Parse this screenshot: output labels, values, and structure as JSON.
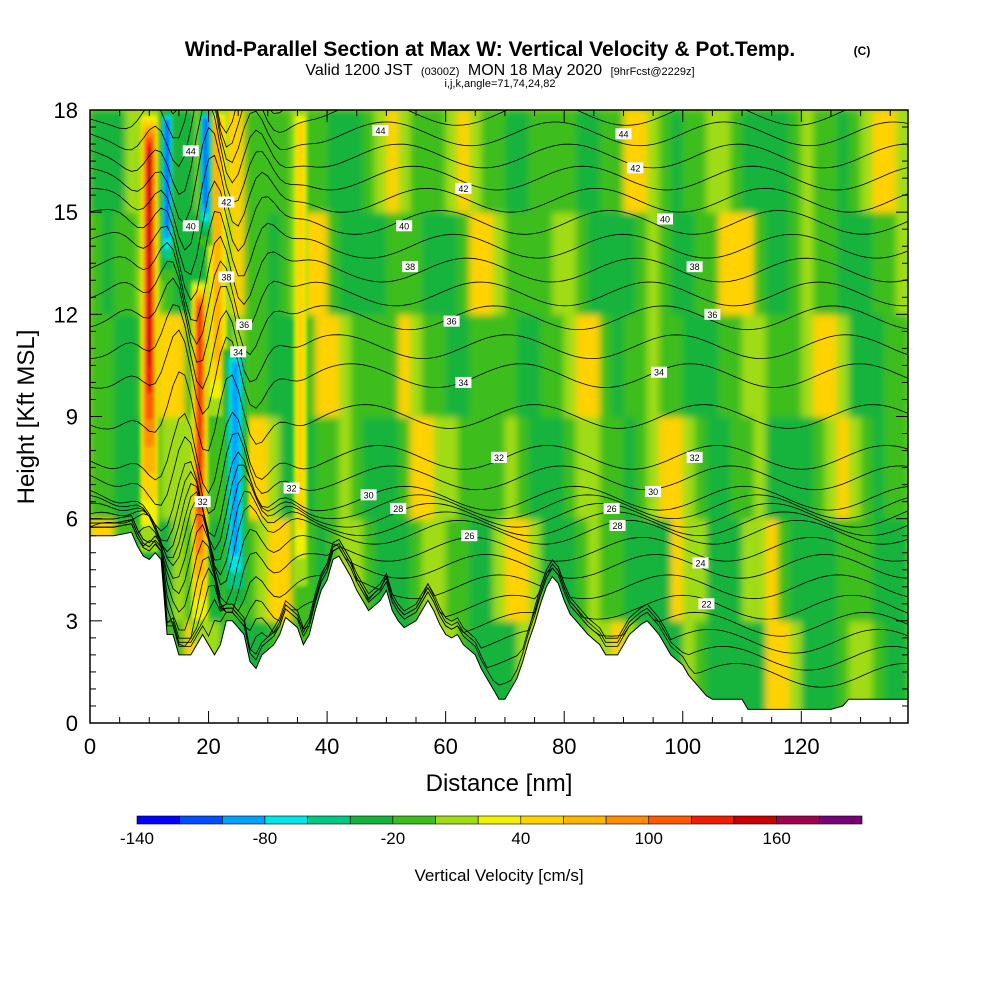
{
  "chart_data": {
    "type": "heatmap",
    "title": "Wind-Parallel Section at Max W: Vertical Velocity & Pot.Temp.",
    "title_mark": "(C)",
    "subtitle_valid": "Valid 1200 JST",
    "subtitle_utc": "(0300Z)",
    "subtitle_date": "MON 18 May 2020",
    "subtitle_fcst": "[9hrFcst@2229z]",
    "subtitle_indices": "i,j,k,angle=71,74,24,82",
    "xlabel": "Distance [nm]",
    "ylabel": "Height [Kft MSL]",
    "xlim": [
      0,
      138
    ],
    "ylim": [
      0,
      18
    ],
    "xticks": [
      0,
      20,
      40,
      60,
      80,
      100,
      120
    ],
    "yticks": [
      0,
      3,
      6,
      9,
      12,
      15,
      18
    ],
    "colorbar": {
      "label": "Vertical Velocity [cm/s]",
      "range": [
        -140,
        200
      ],
      "step": 20,
      "tick_values": [
        -140,
        -80,
        -20,
        40,
        100,
        160
      ],
      "tick_labels": [
        "-140",
        "-80",
        "-20",
        "40",
        "100",
        "160"
      ],
      "colors": [
        "#0000ff",
        "#0050ff",
        "#00a0ff",
        "#00e6e6",
        "#00c882",
        "#14b43c",
        "#3cbe1e",
        "#a0dc14",
        "#f0f000",
        "#ffd200",
        "#ffb400",
        "#ff8c00",
        "#ff5a00",
        "#f01e00",
        "#c80000",
        "#a00050",
        "#780078"
      ]
    },
    "terrain": [
      [
        0,
        5.5
      ],
      [
        4,
        5.5
      ],
      [
        7,
        5.6
      ],
      [
        8,
        5.2
      ],
      [
        9,
        4.9
      ],
      [
        10,
        4.8
      ],
      [
        11,
        5.0
      ],
      [
        12,
        4.8
      ],
      [
        13,
        2.6
      ],
      [
        14,
        2.6
      ],
      [
        15,
        2.0
      ],
      [
        17,
        2.0
      ],
      [
        18,
        2.3
      ],
      [
        19,
        2.6
      ],
      [
        20,
        2.3
      ],
      [
        21,
        2.0
      ],
      [
        22,
        2.3
      ],
      [
        23,
        3.0
      ],
      [
        24,
        3.0
      ],
      [
        26,
        2.6
      ],
      [
        27,
        1.8
      ],
      [
        28,
        1.6
      ],
      [
        29,
        2.0
      ],
      [
        31,
        2.3
      ],
      [
        32,
        2.6
      ],
      [
        33,
        3.1
      ],
      [
        35,
        2.8
      ],
      [
        36,
        2.3
      ],
      [
        37,
        2.6
      ],
      [
        38,
        3.3
      ],
      [
        39,
        3.9
      ],
      [
        40,
        4.2
      ],
      [
        41,
        4.8
      ],
      [
        42,
        4.9
      ],
      [
        44,
        4.3
      ],
      [
        45,
        3.9
      ],
      [
        46,
        3.6
      ],
      [
        47,
        3.3
      ],
      [
        49,
        3.6
      ],
      [
        50,
        3.9
      ],
      [
        51,
        3.3
      ],
      [
        52,
        3.0
      ],
      [
        53,
        2.8
      ],
      [
        55,
        3.0
      ],
      [
        56,
        3.3
      ],
      [
        57,
        3.6
      ],
      [
        58,
        3.3
      ],
      [
        59,
        2.9
      ],
      [
        60,
        2.6
      ],
      [
        61,
        2.5
      ],
      [
        62,
        2.6
      ],
      [
        63,
        2.3
      ],
      [
        65,
        2.0
      ],
      [
        66,
        1.6
      ],
      [
        67,
        1.3
      ],
      [
        68,
        1.0
      ],
      [
        69,
        0.7
      ],
      [
        70,
        0.7
      ],
      [
        71,
        1.0
      ],
      [
        72,
        1.3
      ],
      [
        73,
        1.8
      ],
      [
        74,
        2.4
      ],
      [
        75,
        2.9
      ],
      [
        76,
        3.5
      ],
      [
        77,
        4.0
      ],
      [
        78,
        4.3
      ],
      [
        79,
        4.1
      ],
      [
        80,
        3.6
      ],
      [
        81,
        3.2
      ],
      [
        82,
        3.0
      ],
      [
        83,
        2.8
      ],
      [
        84,
        2.6
      ],
      [
        86,
        2.3
      ],
      [
        87,
        2.0
      ],
      [
        89,
        2.0
      ],
      [
        90,
        2.3
      ],
      [
        91,
        2.6
      ],
      [
        93,
        2.9
      ],
      [
        94,
        3.0
      ],
      [
        95,
        2.8
      ],
      [
        96,
        2.6
      ],
      [
        97,
        2.3
      ],
      [
        98,
        2.0
      ],
      [
        100,
        1.7
      ],
      [
        101,
        1.4
      ],
      [
        103,
        1.0
      ],
      [
        104,
        0.8
      ],
      [
        105,
        0.7
      ],
      [
        110,
        0.7
      ],
      [
        111,
        0.4
      ],
      [
        114,
        0.4
      ],
      [
        120,
        0.4
      ],
      [
        125,
        0.4
      ],
      [
        127,
        0.5
      ],
      [
        128,
        0.7
      ],
      [
        132,
        0.7
      ],
      [
        138,
        0.7
      ]
    ],
    "isentropes": [
      {
        "value": 22,
        "label_x": 104,
        "label_y": 3.5
      },
      {
        "value": 24,
        "label_x": 103,
        "label_y": 4.7
      },
      {
        "value": 26,
        "label_x": 64,
        "label_y": 5.5
      },
      {
        "value": 28,
        "label_x": 52,
        "label_y": 6.3
      },
      {
        "value": 30,
        "label_x": 47,
        "label_y": 6.7
      },
      {
        "value": 32,
        "label_x": 34,
        "label_y": 7.0
      },
      {
        "value": 34,
        "label_x": 63,
        "label_y": 10.0
      },
      {
        "value": 36,
        "label_x": 61,
        "label_y": 11.8
      },
      {
        "value": 38,
        "label_x": 54,
        "label_y": 13.4
      },
      {
        "value": 40,
        "label_x": 53,
        "label_y": 14.6
      },
      {
        "value": 42,
        "label_x": 63,
        "label_y": 15.7
      },
      {
        "value": 44,
        "label_x": 49,
        "label_y": 17.4
      }
    ],
    "contour_labels": [
      {
        "text": "44",
        "x": 17,
        "y": 16.8
      },
      {
        "text": "42",
        "x": 23,
        "y": 15.3
      },
      {
        "text": "40",
        "x": 17,
        "y": 14.6
      },
      {
        "text": "38",
        "x": 23,
        "y": 13.1
      },
      {
        "text": "36",
        "x": 26,
        "y": 11.7
      },
      {
        "text": "34",
        "x": 25,
        "y": 10.9
      },
      {
        "text": "32",
        "x": 19,
        "y": 6.5
      },
      {
        "text": "32",
        "x": 34,
        "y": 6.9
      },
      {
        "text": "30",
        "x": 47,
        "y": 6.7
      },
      {
        "text": "28",
        "x": 52,
        "y": 6.3
      },
      {
        "text": "26",
        "x": 64,
        "y": 5.5
      },
      {
        "text": "44",
        "x": 49,
        "y": 17.4
      },
      {
        "text": "42",
        "x": 63,
        "y": 15.7
      },
      {
        "text": "40",
        "x": 53,
        "y": 14.6
      },
      {
        "text": "38",
        "x": 54,
        "y": 13.4
      },
      {
        "text": "36",
        "x": 61,
        "y": 11.8
      },
      {
        "text": "34",
        "x": 63,
        "y": 10.0
      },
      {
        "text": "32",
        "x": 69,
        "y": 7.8
      },
      {
        "text": "44",
        "x": 90,
        "y": 17.3
      },
      {
        "text": "42",
        "x": 92,
        "y": 16.3
      },
      {
        "text": "40",
        "x": 97,
        "y": 14.8
      },
      {
        "text": "38",
        "x": 102,
        "y": 13.4
      },
      {
        "text": "36",
        "x": 105,
        "y": 12.0
      },
      {
        "text": "34",
        "x": 96,
        "y": 10.3
      },
      {
        "text": "32",
        "x": 102,
        "y": 7.8
      },
      {
        "text": "30",
        "x": 95,
        "y": 6.8
      },
      {
        "text": "26",
        "x": 88,
        "y": 6.3
      },
      {
        "text": "28",
        "x": 89,
        "y": 5.8
      },
      {
        "text": "24",
        "x": 103,
        "y": 4.7
      },
      {
        "text": "22",
        "x": 104,
        "y": 3.5
      }
    ],
    "features": [
      {
        "name": "updraft-core-1",
        "x_center": 10,
        "half_width": 1.6,
        "y_min": 5,
        "y_max": 18,
        "w_peak": 160
      },
      {
        "name": "updraft-core-2",
        "x_center": 18.5,
        "half_width": 1.5,
        "y_min": 2.4,
        "y_max": 13,
        "w_peak": 130
      },
      {
        "name": "updraft-band-3",
        "x_center": 21.5,
        "half_width": 1.8,
        "y_min": 9,
        "y_max": 18,
        "w_peak": 80
      },
      {
        "name": "updraft-band-4",
        "x_center": 35.5,
        "half_width": 1.2,
        "y_min": 4,
        "y_max": 18,
        "w_peak": 50
      },
      {
        "name": "downdraft-core-1",
        "x_center": 13,
        "half_width": 1.2,
        "y_min": 13,
        "y_max": 18,
        "w_peak": -120
      },
      {
        "name": "downdraft-core-2",
        "x_center": 19.5,
        "half_width": 1.2,
        "y_min": 14,
        "y_max": 18,
        "w_peak": -110
      },
      {
        "name": "downdraft-core-3",
        "x_center": 24.5,
        "half_width": 2.2,
        "y_min": 3,
        "y_max": 11,
        "w_peak": -90
      }
    ]
  }
}
